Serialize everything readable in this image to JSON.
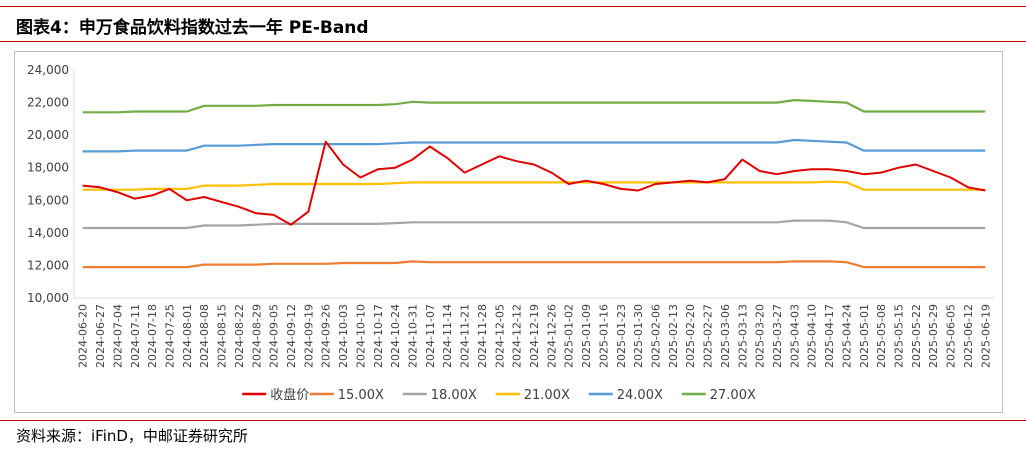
{
  "header": {
    "title": "图表4：申万食品饮料指数过去一年 PE-Band"
  },
  "footer": {
    "source": "资料来源：iFinD，中邮证券研究所"
  },
  "chart_data": {
    "type": "line",
    "title": "图表4：申万食品饮料指数过去一年 PE-Band",
    "xlabel": "",
    "ylabel": "",
    "ylim": [
      10000,
      24000
    ],
    "yticks": [
      10000,
      12000,
      14000,
      16000,
      18000,
      20000,
      22000,
      24000
    ],
    "ytick_labels": [
      "10,000",
      "12,000",
      "14,000",
      "16,000",
      "18,000",
      "20,000",
      "22,000",
      "24,000"
    ],
    "legend_position": "bottom",
    "grid": false,
    "categories": [
      "2024-06-20",
      "2024-06-27",
      "2024-07-04",
      "2024-07-11",
      "2024-07-18",
      "2024-07-25",
      "2024-08-01",
      "2024-08-08",
      "2024-08-15",
      "2024-08-22",
      "2024-08-29",
      "2024-09-05",
      "2024-09-12",
      "2024-09-19",
      "2024-09-26",
      "2024-10-03",
      "2024-10-10",
      "2024-10-17",
      "2024-10-24",
      "2024-10-31",
      "2024-11-07",
      "2024-11-14",
      "2024-11-21",
      "2024-11-28",
      "2024-12-05",
      "2024-12-12",
      "2024-12-19",
      "2024-12-26",
      "2025-01-02",
      "2025-01-09",
      "2025-01-16",
      "2025-01-23",
      "2025-01-30",
      "2025-02-06",
      "2025-02-13",
      "2025-02-20",
      "2025-02-27",
      "2025-03-06",
      "2025-03-13",
      "2025-03-20",
      "2025-03-27",
      "2025-04-03",
      "2025-04-10",
      "2025-04-17",
      "2025-04-24",
      "2025-05-01",
      "2025-05-08",
      "2025-05-15",
      "2025-05-22",
      "2025-05-29",
      "2025-06-05",
      "2025-06-12",
      "2025-06-19"
    ],
    "x_tick_labels": [
      "2024-06-20",
      "2024-06-27",
      "2024-07-04",
      "2024-07-11",
      "2024-07-18",
      "2024-07-25",
      "2024-08-01",
      "2024-08-08",
      "2024-08-15",
      "2024-08-22",
      "2024-08-29",
      "2024-09-05",
      "2024-09-12",
      "2024-09-19",
      "2024-09-26",
      "2024-10-03",
      "2024-10-10",
      "2024-10-17",
      "2024-10-24",
      "2024-10-31",
      "2024-11-07",
      "2024-11-14",
      "2024-11-21",
      "2024-11-28",
      "2024-12-05",
      "2024-12-12",
      "2024-12-19",
      "2024-12-26",
      "2025-01-02",
      "2025-01-09",
      "2025-01-16",
      "2025-01-23",
      "2025-01-30",
      "2025-02-06",
      "2025-02-13",
      "2025-02-20",
      "2025-02-27",
      "2025-03-06",
      "2025-03-13",
      "2025-03-20",
      "2025-03-27",
      "2025-04-03",
      "2025-04-10",
      "2025-04-17",
      "2025-04-24",
      "2025-05-01",
      "2025-05-08",
      "2025-05-15",
      "2025-05-22",
      "2025-05-29",
      "2025-06-05",
      "2025-06-12",
      "2025-06-19"
    ],
    "series": [
      {
        "name": "收盘价",
        "color": "#e00000",
        "values": [
          16900,
          16800,
          16500,
          16100,
          16300,
          16700,
          16000,
          16200,
          15900,
          15600,
          15200,
          15100,
          14500,
          15300,
          19600,
          18200,
          17400,
          17900,
          18000,
          18500,
          19300,
          18600,
          17700,
          18200,
          18700,
          18400,
          18200,
          17700,
          17000,
          17200,
          17000,
          16700,
          16600,
          17000,
          17100,
          17200,
          17100,
          17300,
          18500,
          17800,
          17600,
          17800,
          17900,
          17900,
          17800,
          17600,
          17700,
          18000,
          18200,
          17800,
          17400,
          16800,
          16600
        ]
      },
      {
        "name": "15.00X",
        "color": "#ed7d31",
        "values": [
          11900,
          11900,
          11900,
          11900,
          11900,
          11900,
          11900,
          12050,
          12050,
          12050,
          12050,
          12100,
          12100,
          12100,
          12100,
          12150,
          12150,
          12150,
          12150,
          12250,
          12200,
          12200,
          12200,
          12200,
          12200,
          12200,
          12200,
          12200,
          12200,
          12200,
          12200,
          12200,
          12200,
          12200,
          12200,
          12200,
          12200,
          12200,
          12200,
          12200,
          12200,
          12250,
          12250,
          12250,
          12200,
          11900,
          11900,
          11900,
          11900,
          11900,
          11900,
          11900,
          11900
        ]
      },
      {
        "name": "18.00X",
        "color": "#a5a5a5",
        "values": [
          14300,
          14300,
          14300,
          14300,
          14300,
          14300,
          14300,
          14450,
          14450,
          14450,
          14500,
          14550,
          14550,
          14550,
          14550,
          14550,
          14550,
          14550,
          14600,
          14650,
          14650,
          14650,
          14650,
          14650,
          14650,
          14650,
          14650,
          14650,
          14650,
          14650,
          14650,
          14650,
          14650,
          14650,
          14650,
          14650,
          14650,
          14650,
          14650,
          14650,
          14650,
          14750,
          14750,
          14750,
          14650,
          14300,
          14300,
          14300,
          14300,
          14300,
          14300,
          14300,
          14300
        ]
      },
      {
        "name": "21.00X",
        "color": "#ffc000",
        "values": [
          16650,
          16650,
          16650,
          16650,
          16700,
          16700,
          16700,
          16900,
          16900,
          16900,
          16950,
          17000,
          17000,
          17000,
          17000,
          17000,
          17000,
          17000,
          17050,
          17100,
          17100,
          17100,
          17100,
          17100,
          17100,
          17100,
          17100,
          17100,
          17100,
          17100,
          17100,
          17100,
          17100,
          17100,
          17100,
          17100,
          17100,
          17100,
          17100,
          17100,
          17100,
          17100,
          17100,
          17150,
          17100,
          16650,
          16650,
          16650,
          16650,
          16650,
          16650,
          16650,
          16650
        ]
      },
      {
        "name": "24.00X",
        "color": "#5b9bd5",
        "values": [
          19000,
          19000,
          19000,
          19050,
          19050,
          19050,
          19050,
          19350,
          19350,
          19350,
          19400,
          19450,
          19450,
          19450,
          19450,
          19450,
          19450,
          19450,
          19500,
          19550,
          19550,
          19550,
          19550,
          19550,
          19550,
          19550,
          19550,
          19550,
          19550,
          19550,
          19550,
          19550,
          19550,
          19550,
          19550,
          19550,
          19550,
          19550,
          19550,
          19550,
          19550,
          19700,
          19650,
          19600,
          19550,
          19050,
          19050,
          19050,
          19050,
          19050,
          19050,
          19050,
          19050
        ]
      },
      {
        "name": "27.00X",
        "color": "#70ad47",
        "values": [
          21400,
          21400,
          21400,
          21450,
          21450,
          21450,
          21450,
          21800,
          21800,
          21800,
          21800,
          21850,
          21850,
          21850,
          21850,
          21850,
          21850,
          21850,
          21900,
          22050,
          22000,
          22000,
          22000,
          22000,
          22000,
          22000,
          22000,
          22000,
          22000,
          22000,
          22000,
          22000,
          22000,
          22000,
          22000,
          22000,
          22000,
          22000,
          22000,
          22000,
          22000,
          22150,
          22100,
          22050,
          22000,
          21450,
          21450,
          21450,
          21450,
          21450,
          21450,
          21450,
          21450
        ]
      }
    ]
  }
}
